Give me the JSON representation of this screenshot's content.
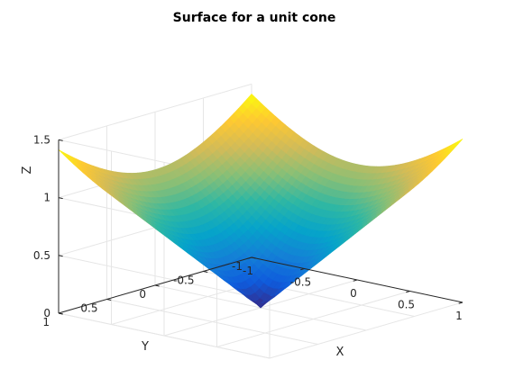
{
  "chart_data": {
    "type": "surface",
    "title": "Surface for a unit cone",
    "xlabel": "X",
    "ylabel": "Y",
    "zlabel": "Z",
    "xlim": [
      -1,
      1
    ],
    "ylim": [
      -1,
      1
    ],
    "zlim": [
      0,
      1.5
    ],
    "x_ticks": [
      -1,
      -0.5,
      0,
      0.5,
      1
    ],
    "y_ticks": [
      -1,
      -0.5,
      0,
      0.5,
      1
    ],
    "z_ticks": [
      0,
      0.5,
      1,
      1.5
    ],
    "x_tick_labels": [
      "-1",
      "-0.5",
      "0",
      "0.5",
      "1"
    ],
    "y_tick_labels": [
      "-1",
      "-0.5",
      "0",
      "0.5",
      "1"
    ],
    "z_tick_labels": [
      "0",
      "0.5",
      "1",
      "1.5"
    ],
    "function": "z = sqrt(x^2 + y^2)",
    "grid": true,
    "box": "open",
    "colormap": "parula",
    "colormap_stops": [
      "#352a87",
      "#0f5cdd",
      "#1481d6",
      "#06a4ca",
      "#2eb7a4",
      "#87bf77",
      "#d1bb59",
      "#fec832",
      "#f9fb0e"
    ],
    "corner_points": [
      {
        "x": -1,
        "y": -1,
        "z": 1.414
      },
      {
        "x": 1,
        "y": -1,
        "z": 1.414
      },
      {
        "x": 1,
        "y": 1,
        "z": 1.414
      },
      {
        "x": -1,
        "y": 1,
        "z": 1.414
      }
    ],
    "apex": {
      "x": 0,
      "y": 0,
      "z": 0
    }
  }
}
